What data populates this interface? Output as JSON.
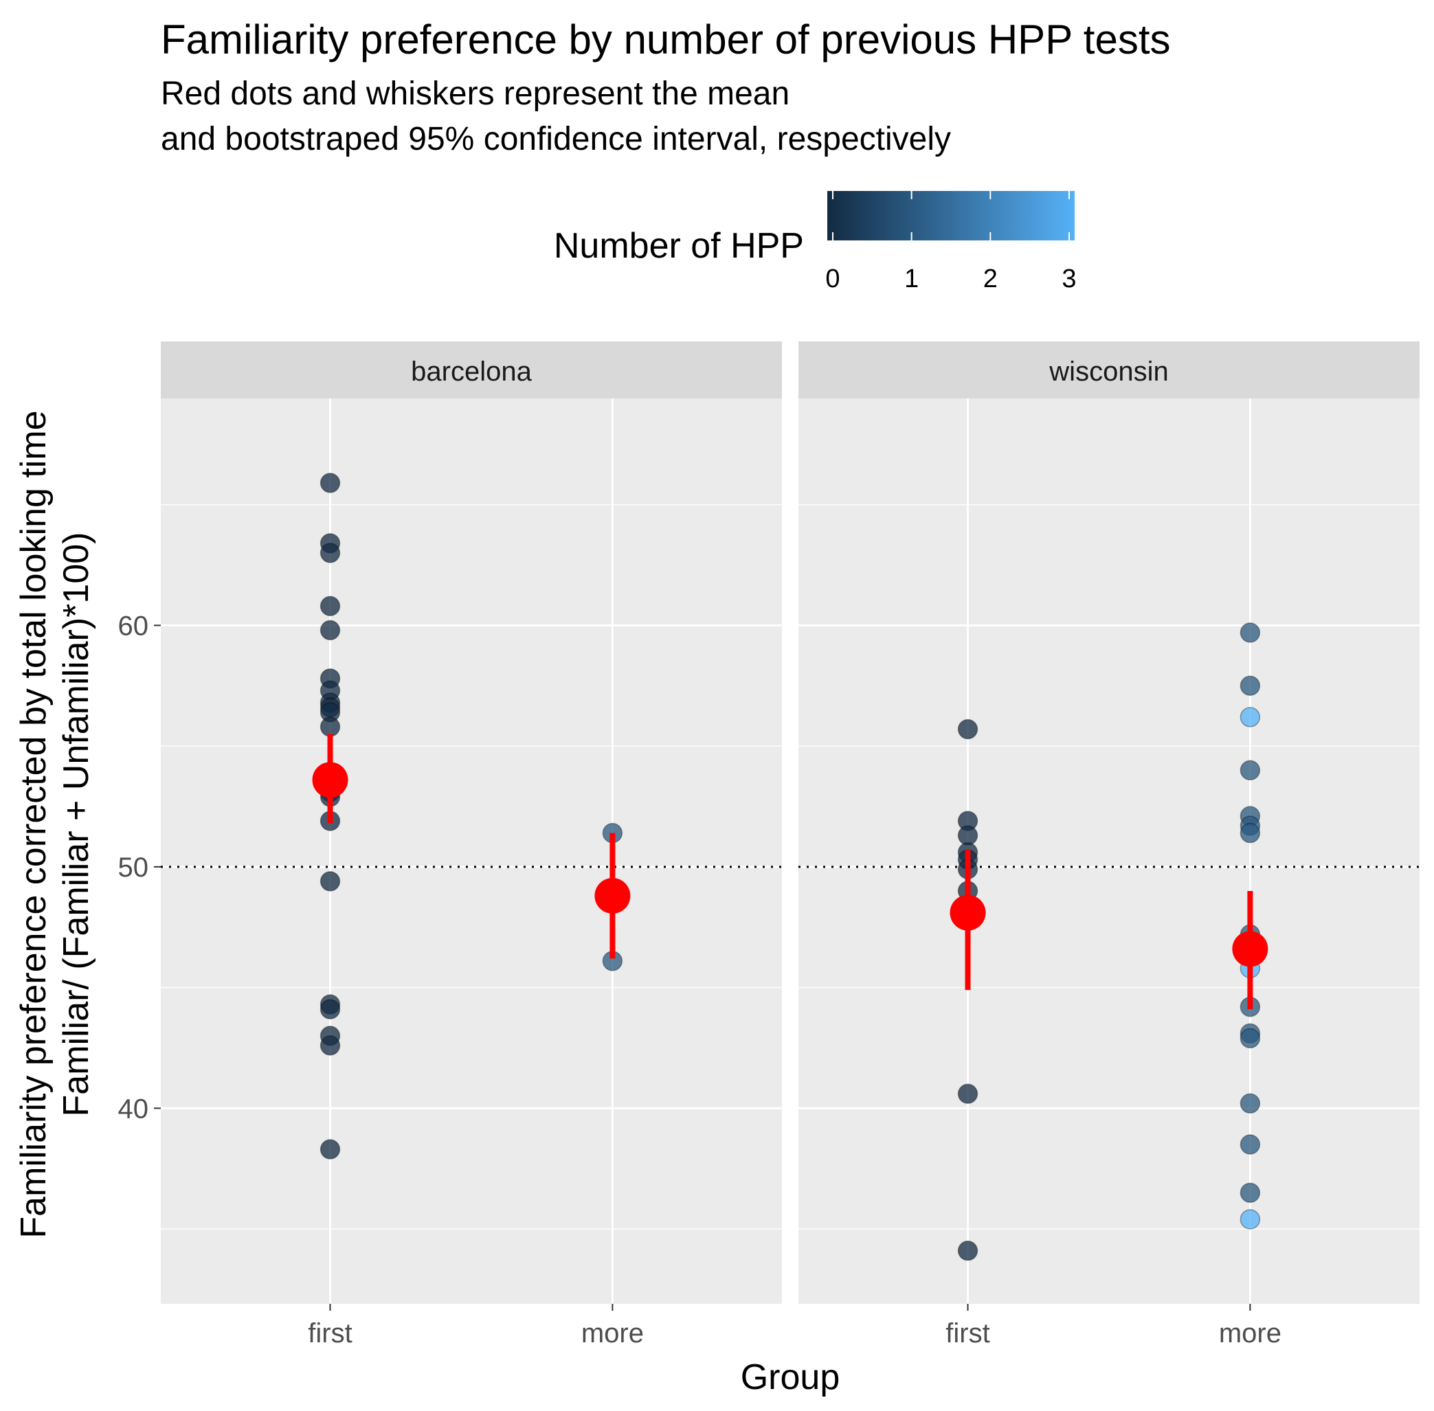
{
  "chart_data": {
    "type": "scatter",
    "title": "Familiarity preference by number of previous HPP tests",
    "subtitle_lines": [
      "Red dots and whiskers represent the mean",
      "and bootstraped 95% confidence interval, respectively"
    ],
    "xlabel": "Group",
    "ylabel_lines": [
      "Familiarity preference corrected by total looking time",
      "Familiar/ (Familiar + Unfamiliar)*100)"
    ],
    "legend": {
      "title": "Number of HPP",
      "type": "colorbar",
      "placement": "top",
      "range": [
        0,
        3
      ],
      "ticks": [
        "0",
        "1",
        "2",
        "3"
      ],
      "low_color": "#132B43",
      "high_color": "#56B1F7"
    },
    "ylim": [
      31.9,
      69.4
    ],
    "yticks": [
      40,
      50,
      60
    ],
    "reference_line": {
      "y": 50,
      "style": "dotted"
    },
    "categories": [
      "first",
      "more"
    ],
    "grid": true,
    "facets": [
      {
        "label": "barcelona",
        "points": [
          {
            "x": "first",
            "y": 65.9,
            "hpp": 0
          },
          {
            "x": "first",
            "y": 63.4,
            "hpp": 0
          },
          {
            "x": "first",
            "y": 63.0,
            "hpp": 0
          },
          {
            "x": "first",
            "y": 60.8,
            "hpp": 0
          },
          {
            "x": "first",
            "y": 59.8,
            "hpp": 0
          },
          {
            "x": "first",
            "y": 57.8,
            "hpp": 0
          },
          {
            "x": "first",
            "y": 57.3,
            "hpp": 0
          },
          {
            "x": "first",
            "y": 56.8,
            "hpp": 0
          },
          {
            "x": "first",
            "y": 56.6,
            "hpp": 0
          },
          {
            "x": "first",
            "y": 56.4,
            "hpp": 0
          },
          {
            "x": "first",
            "y": 55.8,
            "hpp": 0
          },
          {
            "x": "first",
            "y": 53.1,
            "hpp": 0
          },
          {
            "x": "first",
            "y": 52.9,
            "hpp": 0
          },
          {
            "x": "first",
            "y": 51.9,
            "hpp": 0
          },
          {
            "x": "first",
            "y": 49.4,
            "hpp": 0
          },
          {
            "x": "first",
            "y": 44.3,
            "hpp": 0
          },
          {
            "x": "first",
            "y": 44.1,
            "hpp": 0
          },
          {
            "x": "first",
            "y": 43.0,
            "hpp": 0
          },
          {
            "x": "first",
            "y": 42.6,
            "hpp": 0
          },
          {
            "x": "first",
            "y": 38.3,
            "hpp": 0
          },
          {
            "x": "more",
            "y": 51.4,
            "hpp": 1
          },
          {
            "x": "more",
            "y": 46.1,
            "hpp": 1
          }
        ],
        "summary": [
          {
            "x": "first",
            "mean": 53.6,
            "ci": [
              51.8,
              55.5
            ]
          },
          {
            "x": "more",
            "mean": 48.8,
            "ci": [
              46.2,
              51.4
            ]
          }
        ]
      },
      {
        "label": "wisconsin",
        "points": [
          {
            "x": "first",
            "y": 55.7,
            "hpp": 0
          },
          {
            "x": "first",
            "y": 51.9,
            "hpp": 0
          },
          {
            "x": "first",
            "y": 51.3,
            "hpp": 0
          },
          {
            "x": "first",
            "y": 50.6,
            "hpp": 0
          },
          {
            "x": "first",
            "y": 50.3,
            "hpp": 0
          },
          {
            "x": "first",
            "y": 49.9,
            "hpp": 0
          },
          {
            "x": "first",
            "y": 49.0,
            "hpp": 0
          },
          {
            "x": "first",
            "y": 40.6,
            "hpp": 0
          },
          {
            "x": "first",
            "y": 34.1,
            "hpp": 0
          },
          {
            "x": "more",
            "y": 59.7,
            "hpp": 1
          },
          {
            "x": "more",
            "y": 57.5,
            "hpp": 1
          },
          {
            "x": "more",
            "y": 56.2,
            "hpp": 3
          },
          {
            "x": "more",
            "y": 54.0,
            "hpp": 1
          },
          {
            "x": "more",
            "y": 52.1,
            "hpp": 1
          },
          {
            "x": "more",
            "y": 51.7,
            "hpp": 1
          },
          {
            "x": "more",
            "y": 51.4,
            "hpp": 1
          },
          {
            "x": "more",
            "y": 47.2,
            "hpp": 1
          },
          {
            "x": "more",
            "y": 45.8,
            "hpp": 3
          },
          {
            "x": "more",
            "y": 44.2,
            "hpp": 1
          },
          {
            "x": "more",
            "y": 43.1,
            "hpp": 1
          },
          {
            "x": "more",
            "y": 42.9,
            "hpp": 1
          },
          {
            "x": "more",
            "y": 40.2,
            "hpp": 1
          },
          {
            "x": "more",
            "y": 38.5,
            "hpp": 1
          },
          {
            "x": "more",
            "y": 36.5,
            "hpp": 1
          },
          {
            "x": "more",
            "y": 35.4,
            "hpp": 3
          }
        ],
        "summary": [
          {
            "x": "first",
            "mean": 48.1,
            "ci": [
              44.9,
              50.7
            ]
          },
          {
            "x": "more",
            "mean": 46.6,
            "ci": [
              44.1,
              49.0
            ]
          }
        ]
      }
    ]
  }
}
